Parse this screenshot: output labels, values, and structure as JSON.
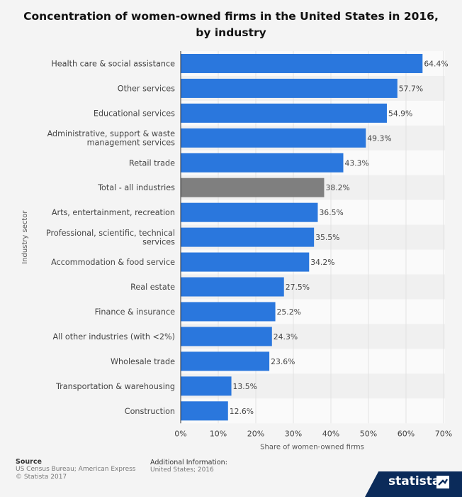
{
  "chart_data": {
    "type": "bar",
    "orientation": "horizontal",
    "title": "Concentration of women-owned firms in the United States in 2016, by industry",
    "xlabel": "Share of women-owned firms",
    "ylabel": "Industry sector",
    "categories": [
      "Health care & social assistance",
      "Other services",
      "Educational services",
      "Administrative, support & waste management services",
      "Retail trade",
      "Total - all industries",
      "Arts, entertainment, recreation",
      "Professional, scientific, technical services",
      "Accommodation & food service",
      "Real estate",
      "Finance & insurance",
      "All other industries (with <2%)",
      "Wholesale trade",
      "Transportation & warehousing",
      "Construction"
    ],
    "category_lines": [
      [
        "Health care & social assistance"
      ],
      [
        "Other services"
      ],
      [
        "Educational services"
      ],
      [
        "Administrative, support & waste",
        "management services"
      ],
      [
        "Retail trade"
      ],
      [
        "Total - all industries"
      ],
      [
        "Arts, entertainment, recreation"
      ],
      [
        "Professional, scientific, technical",
        "services"
      ],
      [
        "Accommodation & food service"
      ],
      [
        "Real estate"
      ],
      [
        "Finance & insurance"
      ],
      [
        "All other industries (with <2%)"
      ],
      [
        "Wholesale trade"
      ],
      [
        "Transportation & warehousing"
      ],
      [
        "Construction"
      ]
    ],
    "values": [
      64.4,
      57.7,
      54.9,
      49.3,
      43.3,
      38.2,
      36.5,
      35.5,
      34.2,
      27.5,
      25.2,
      24.3,
      23.6,
      13.5,
      12.6
    ],
    "value_labels": [
      "64.4%",
      "57.7%",
      "54.9%",
      "49.3%",
      "43.3%",
      "38.2%",
      "36.5%",
      "35.5%",
      "34.2%",
      "27.5%",
      "25.2%",
      "24.3%",
      "23.6%",
      "13.5%",
      "12.6%"
    ],
    "highlight_index": 5,
    "xlim": [
      0,
      70
    ],
    "xticks": [
      0,
      10,
      20,
      30,
      40,
      50,
      60,
      70
    ],
    "xtick_labels": [
      "0%",
      "10%",
      "20%",
      "30%",
      "40%",
      "50%",
      "60%",
      "70%"
    ],
    "grid": true,
    "colors": {
      "bar": "#2a77dd",
      "highlight": "#7f7f7f",
      "band_light": "#fafafa",
      "band_dark": "#f0f0f0",
      "grid": "#e2e2e2"
    }
  },
  "footer": {
    "source_heading": "Source",
    "source_lines": [
      "US Census Bureau; American Express",
      "© Statista 2017"
    ],
    "info_heading": "Additional Information:",
    "info_lines": [
      "United States; 2016"
    ],
    "brand": "statista"
  }
}
